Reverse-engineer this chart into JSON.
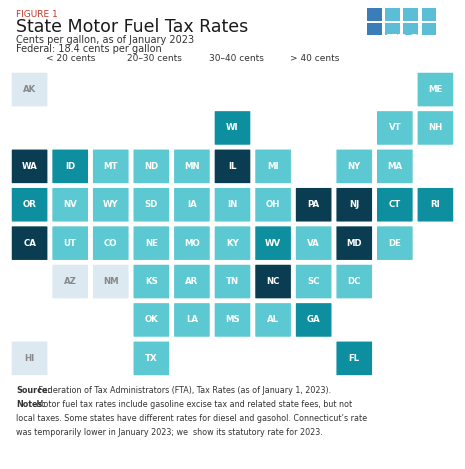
{
  "title_figure": "FIGURE 1",
  "title": "State Motor Fuel Tax Rates",
  "subtitle": "Cents per gallon, as of January 2023",
  "federal": "Federal: 18.4 cents per gallon",
  "legend": [
    {
      "label": "< 20 cents",
      "color": "#dce9f0"
    },
    {
      "label": "20–30 cents",
      "color": "#5bc8d2"
    },
    {
      "label": "30–40 cents",
      "color": "#0e8fa0"
    },
    {
      "label": "> 40 cents",
      "color": "#0a3d52"
    }
  ],
  "source_lines": [
    {
      "bold": "Source:",
      "normal": " Federation of Tax Administrators (FTA), Tax Rates (as of January 1, 2023)."
    },
    {
      "bold": "Notes:",
      "normal": " Motor fuel tax rates include gasoline excise tax and related state fees, but not"
    },
    {
      "bold": "",
      "normal": "local taxes. Some states have different rates for diesel and gasohol. Connecticut’s rate"
    },
    {
      "bold": "",
      "normal": "was temporarily lower in January 2023; we  show its statutory rate for 2023."
    }
  ],
  "states": [
    {
      "abbr": "AK",
      "col": 0,
      "row": 0,
      "color": "#dce9f0"
    },
    {
      "abbr": "ME",
      "col": 10,
      "row": 0,
      "color": "#5bc8d2"
    },
    {
      "abbr": "VT",
      "col": 9,
      "row": 1,
      "color": "#5bc8d2"
    },
    {
      "abbr": "NH",
      "col": 10,
      "row": 1,
      "color": "#5bc8d2"
    },
    {
      "abbr": "WI",
      "col": 5,
      "row": 1,
      "color": "#0e8fa0"
    },
    {
      "abbr": "WA",
      "col": 0,
      "row": 2,
      "color": "#0a3d52"
    },
    {
      "abbr": "ID",
      "col": 1,
      "row": 2,
      "color": "#0e8fa0"
    },
    {
      "abbr": "MT",
      "col": 2,
      "row": 2,
      "color": "#5bc8d2"
    },
    {
      "abbr": "ND",
      "col": 3,
      "row": 2,
      "color": "#5bc8d2"
    },
    {
      "abbr": "MN",
      "col": 4,
      "row": 2,
      "color": "#5bc8d2"
    },
    {
      "abbr": "IL",
      "col": 5,
      "row": 2,
      "color": "#0a3d52"
    },
    {
      "abbr": "MI",
      "col": 6,
      "row": 2,
      "color": "#5bc8d2"
    },
    {
      "abbr": "NY",
      "col": 8,
      "row": 2,
      "color": "#5bc8d2"
    },
    {
      "abbr": "MA",
      "col": 9,
      "row": 2,
      "color": "#5bc8d2"
    },
    {
      "abbr": "OR",
      "col": 0,
      "row": 3,
      "color": "#0e8fa0"
    },
    {
      "abbr": "NV",
      "col": 1,
      "row": 3,
      "color": "#5bc8d2"
    },
    {
      "abbr": "WY",
      "col": 2,
      "row": 3,
      "color": "#5bc8d2"
    },
    {
      "abbr": "SD",
      "col": 3,
      "row": 3,
      "color": "#5bc8d2"
    },
    {
      "abbr": "IA",
      "col": 4,
      "row": 3,
      "color": "#5bc8d2"
    },
    {
      "abbr": "IN",
      "col": 5,
      "row": 3,
      "color": "#5bc8d2"
    },
    {
      "abbr": "OH",
      "col": 6,
      "row": 3,
      "color": "#5bc8d2"
    },
    {
      "abbr": "PA",
      "col": 7,
      "row": 3,
      "color": "#0a3d52"
    },
    {
      "abbr": "NJ",
      "col": 8,
      "row": 3,
      "color": "#0a3d52"
    },
    {
      "abbr": "CT",
      "col": 9,
      "row": 3,
      "color": "#0e8fa0"
    },
    {
      "abbr": "RI",
      "col": 10,
      "row": 3,
      "color": "#0e8fa0"
    },
    {
      "abbr": "CA",
      "col": 0,
      "row": 4,
      "color": "#0a3d52"
    },
    {
      "abbr": "UT",
      "col": 1,
      "row": 4,
      "color": "#5bc8d2"
    },
    {
      "abbr": "CO",
      "col": 2,
      "row": 4,
      "color": "#5bc8d2"
    },
    {
      "abbr": "NE",
      "col": 3,
      "row": 4,
      "color": "#5bc8d2"
    },
    {
      "abbr": "MO",
      "col": 4,
      "row": 4,
      "color": "#5bc8d2"
    },
    {
      "abbr": "KY",
      "col": 5,
      "row": 4,
      "color": "#5bc8d2"
    },
    {
      "abbr": "WV",
      "col": 6,
      "row": 4,
      "color": "#0e8fa0"
    },
    {
      "abbr": "VA",
      "col": 7,
      "row": 4,
      "color": "#5bc8d2"
    },
    {
      "abbr": "MD",
      "col": 8,
      "row": 4,
      "color": "#0a3d52"
    },
    {
      "abbr": "DE",
      "col": 9,
      "row": 4,
      "color": "#5bc8d2"
    },
    {
      "abbr": "AZ",
      "col": 1,
      "row": 5,
      "color": "#dce9f0"
    },
    {
      "abbr": "NM",
      "col": 2,
      "row": 5,
      "color": "#dce9f0"
    },
    {
      "abbr": "KS",
      "col": 3,
      "row": 5,
      "color": "#5bc8d2"
    },
    {
      "abbr": "AR",
      "col": 4,
      "row": 5,
      "color": "#5bc8d2"
    },
    {
      "abbr": "TN",
      "col": 5,
      "row": 5,
      "color": "#5bc8d2"
    },
    {
      "abbr": "NC",
      "col": 6,
      "row": 5,
      "color": "#0a3d52"
    },
    {
      "abbr": "SC",
      "col": 7,
      "row": 5,
      "color": "#5bc8d2"
    },
    {
      "abbr": "DC",
      "col": 8,
      "row": 5,
      "color": "#5bc8d2"
    },
    {
      "abbr": "OK",
      "col": 3,
      "row": 6,
      "color": "#5bc8d2"
    },
    {
      "abbr": "LA",
      "col": 4,
      "row": 6,
      "color": "#5bc8d2"
    },
    {
      "abbr": "MS",
      "col": 5,
      "row": 6,
      "color": "#5bc8d2"
    },
    {
      "abbr": "AL",
      "col": 6,
      "row": 6,
      "color": "#5bc8d2"
    },
    {
      "abbr": "GA",
      "col": 7,
      "row": 6,
      "color": "#0e8fa0"
    },
    {
      "abbr": "HI",
      "col": 0,
      "row": 7,
      "color": "#dce9f0"
    },
    {
      "abbr": "TX",
      "col": 3,
      "row": 7,
      "color": "#5bc8d2"
    },
    {
      "abbr": "FL",
      "col": 8,
      "row": 7,
      "color": "#0e8fa0"
    }
  ],
  "tpc_logo_bg": "#1e4d8c",
  "tpc_grid_colors": [
    "#4a90c4",
    "#5bbdd6",
    "#5bbdd6",
    "#5bbdd6",
    "#4a90c4",
    "#5bbdd6",
    "#5bbdd6",
    "#5bbdd6"
  ],
  "bg_color": "#ffffff",
  "figure1_color": "#c0392b",
  "title_color": "#1a1a1a",
  "body_color": "#333333"
}
